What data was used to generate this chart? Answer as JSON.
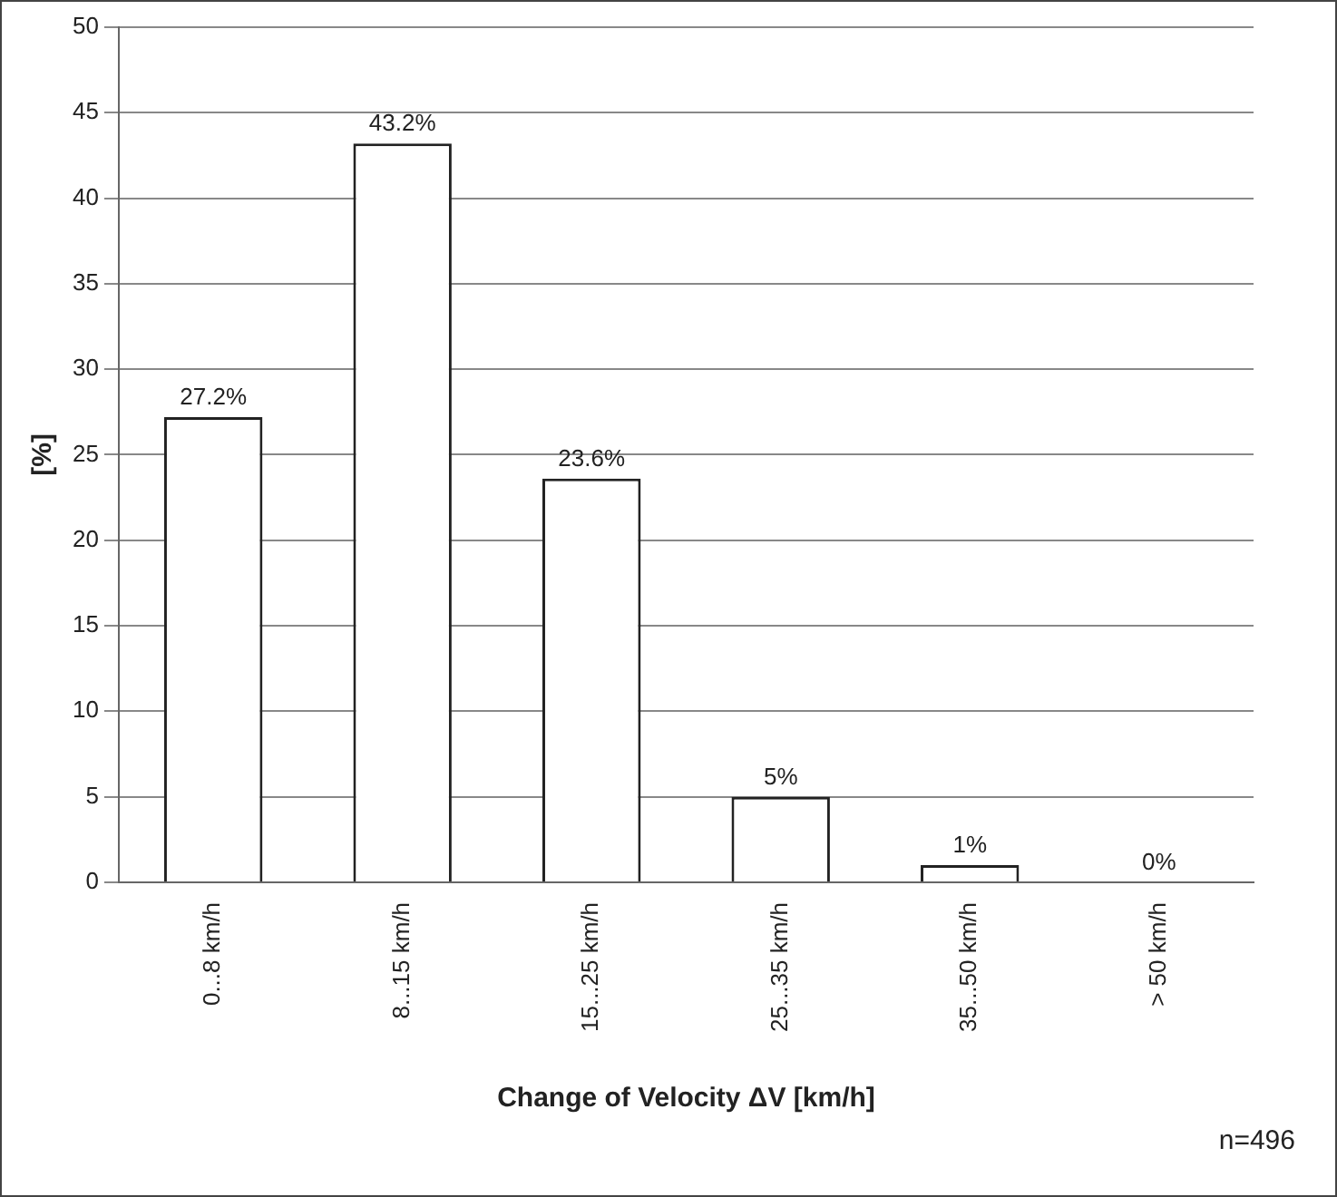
{
  "chart_data": {
    "type": "bar",
    "xlabel": "Change of Velocity ΔV [km/h]",
    "ylabel": "[%]",
    "categories": [
      "0...8 km/h",
      "8...15 km/h",
      "15...25 km/h",
      "25...35 km/h",
      "35...50 km/h",
      "> 50 km/h"
    ],
    "values": [
      27.2,
      43.2,
      23.6,
      5,
      1,
      0
    ],
    "value_labels": [
      "27.2%",
      "43.2%",
      "23.6%",
      "5%",
      "1%",
      "0%"
    ],
    "color": "#ffffff",
    "ylim": [
      0,
      50
    ],
    "yticks": [
      0,
      5,
      10,
      15,
      20,
      25,
      30,
      35,
      40,
      45,
      50
    ],
    "grid": "y",
    "legend": false,
    "annotations": [
      "n=496"
    ]
  }
}
